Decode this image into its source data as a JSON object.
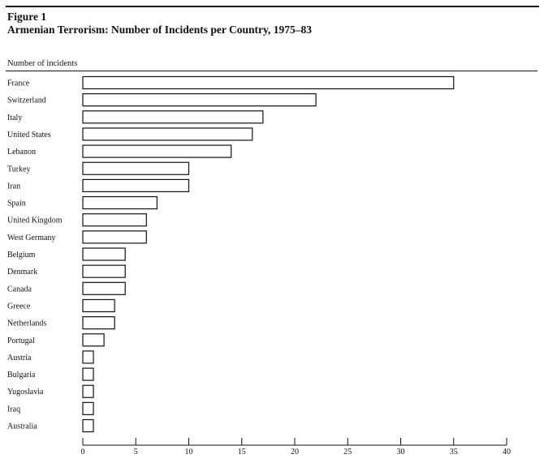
{
  "figure": {
    "label": "Figure 1",
    "title": "Armenian Terrorism: Number of Incidents per Country, 1975–83"
  },
  "chart_data": {
    "type": "bar",
    "orientation": "horizontal",
    "title": "Armenian Terrorism: Number of Incidents per Country, 1975–83",
    "xlabel": "",
    "ylabel": "Number of incidents",
    "categories": [
      "France",
      "Switzerland",
      "Italy",
      "United States",
      "Lebanon",
      "Turkey",
      "Iran",
      "Spain",
      "United Kingdom",
      "West Germany",
      "Belgium",
      "Denmark",
      "Canada",
      "Greece",
      "Netherlands",
      "Portugal",
      "Austria",
      "Bulgaria",
      "Yugoslavia",
      "Iraq",
      "Australia"
    ],
    "values": [
      35,
      22,
      17,
      16,
      14,
      10,
      10,
      7,
      6,
      6,
      4,
      4,
      4,
      3,
      3,
      2,
      1,
      1,
      1,
      1,
      1
    ],
    "xlim": [
      0,
      40
    ],
    "xticks": [
      0,
      5,
      10,
      15,
      20,
      25,
      30,
      35,
      40
    ],
    "grid": false,
    "bar_fill": "#ffffff",
    "bar_stroke": "#111111"
  }
}
